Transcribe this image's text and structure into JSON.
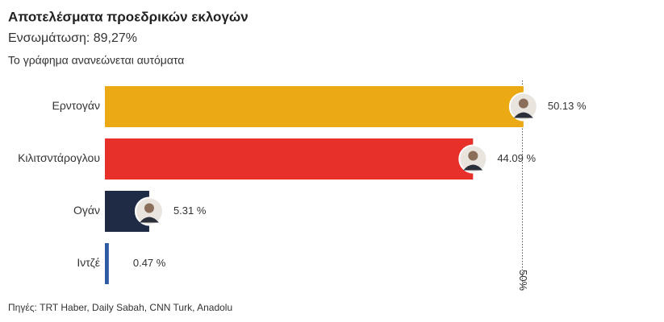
{
  "chart_data": {
    "type": "bar",
    "orientation": "horizontal",
    "title": "Αποτελέσματα προεδρικών εκλογών",
    "subtitle": "Ενσωμάτωση: 89,27%",
    "description": "Το γράφημα ανανεώνεται αυτόματα",
    "categories": [
      "Ερντογάν",
      "Κιλιτσντάρογλου",
      "Ογάν",
      "Ιντζέ"
    ],
    "values": [
      50.13,
      44.09,
      5.31,
      0.47
    ],
    "value_labels": [
      "50.13 %",
      "44.09 %",
      "5.31 %",
      "0.47 %"
    ],
    "colors": [
      "#eba914",
      "#e8302a",
      "#1f2a44",
      "#2f5aa6"
    ],
    "reference_line": {
      "value": 50,
      "label": "50%"
    },
    "source": "Πηγές: TRT Haber, Daily Sabah, CNN Turk, Anadolu"
  }
}
